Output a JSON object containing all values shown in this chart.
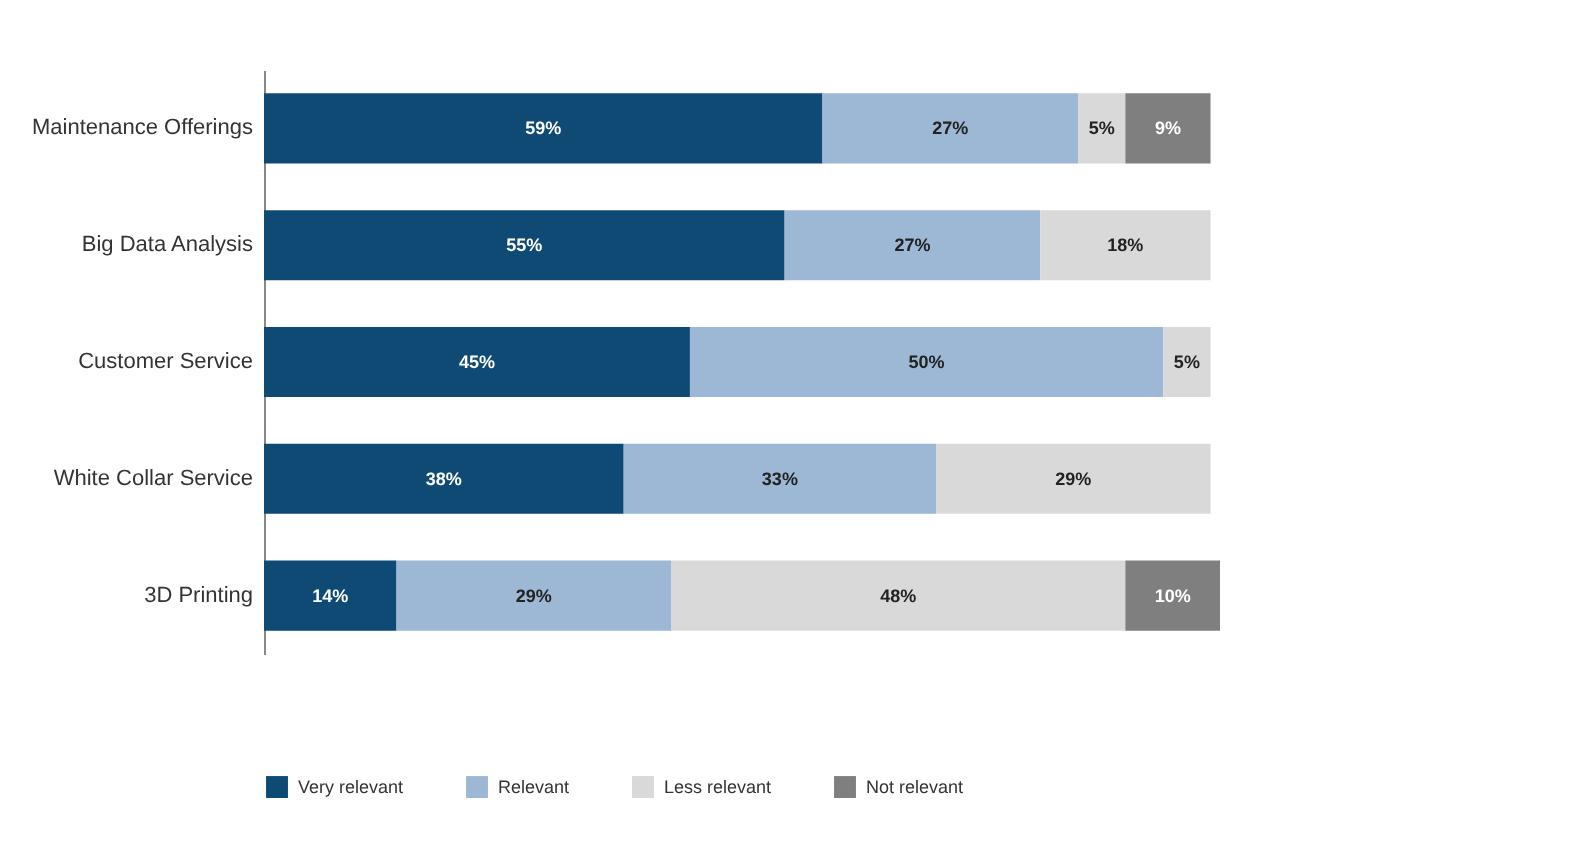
{
  "chart_data": {
    "type": "bar",
    "orientation": "horizontal",
    "stacked": true,
    "legend": "bottom left",
    "grid": false,
    "data_labels": true,
    "categories": [
      "Maintenance Offerings",
      "Big Data Analysis",
      "Customer Service",
      "White Collar Service",
      "3D Printing"
    ],
    "series": [
      {
        "name": "Very relevant",
        "color": "#0e4a74",
        "values": [
          59,
          55,
          45,
          38,
          14
        ],
        "value_labels": [
          "59%",
          "55%",
          "45%",
          "38%",
          "14%"
        ]
      },
      {
        "name": "Relevant",
        "color": "#9cb8d4",
        "values": [
          27,
          27,
          50,
          33,
          29
        ],
        "value_labels": [
          "27%",
          "27%",
          "50%",
          "33%",
          "29%"
        ]
      },
      {
        "name": "Less relevant",
        "color": "#d9d9d9",
        "values": [
          5,
          18,
          5,
          29,
          48
        ],
        "value_labels": [
          "5%",
          "18%",
          "5%",
          "29%",
          "48%"
        ]
      },
      {
        "name": "Not relevant",
        "color": "#7f7f7f",
        "values": [
          9,
          null,
          null,
          null,
          10
        ],
        "value_labels": [
          "9%",
          null,
          null,
          null,
          "10%"
        ]
      }
    ]
  }
}
